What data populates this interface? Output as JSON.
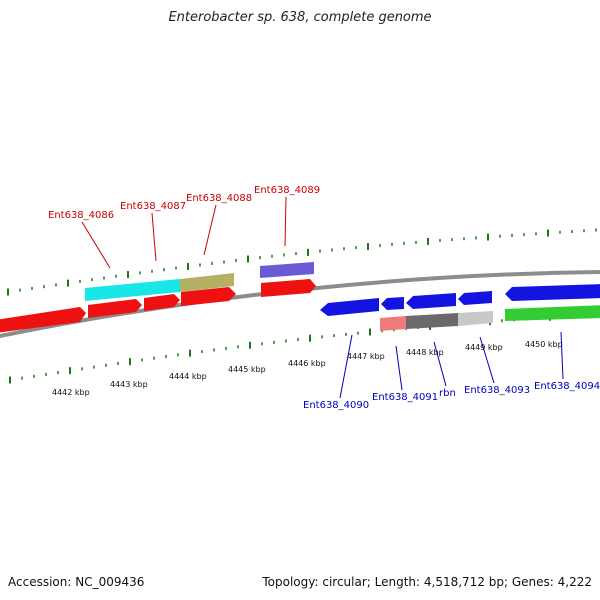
{
  "title": "Enterobacter sp. 638, complete genome",
  "footer": {
    "accession": "Accession: NC_009436",
    "summary": "Topology: circular; Length: 4,518,712 bp; Genes: 4,222"
  },
  "colors": {
    "forward_label": "#cc0000",
    "reverse_label": "#0000bb",
    "tick": "#1a7a1a",
    "backbone": "#8c8c8c"
  },
  "ticks": {
    "unit": "kbp",
    "labeled": [
      "4442 kbp",
      "4443 kbp",
      "4444 kbp",
      "4445 kbp",
      "4446 kbp",
      "4447 kbp",
      "4448 kbp",
      "4449 kbp",
      "4450 kbp"
    ]
  },
  "genes_forward": [
    {
      "name": "Ent638_4086",
      "labeled": true
    },
    {
      "name": "Ent638_4087",
      "labeled": true
    },
    {
      "name": "Ent638_4088",
      "labeled": true
    },
    {
      "name": "Ent638_4089",
      "labeled": true
    }
  ],
  "genes_reverse": [
    {
      "name": "Ent638_4090",
      "labeled": true
    },
    {
      "name": "Ent638_4091",
      "labeled": true
    },
    {
      "name": "rbn",
      "labeled": true
    },
    {
      "name": "Ent638_4093",
      "labeled": true
    },
    {
      "name": "Ent638_4094",
      "labeled": true
    }
  ]
}
